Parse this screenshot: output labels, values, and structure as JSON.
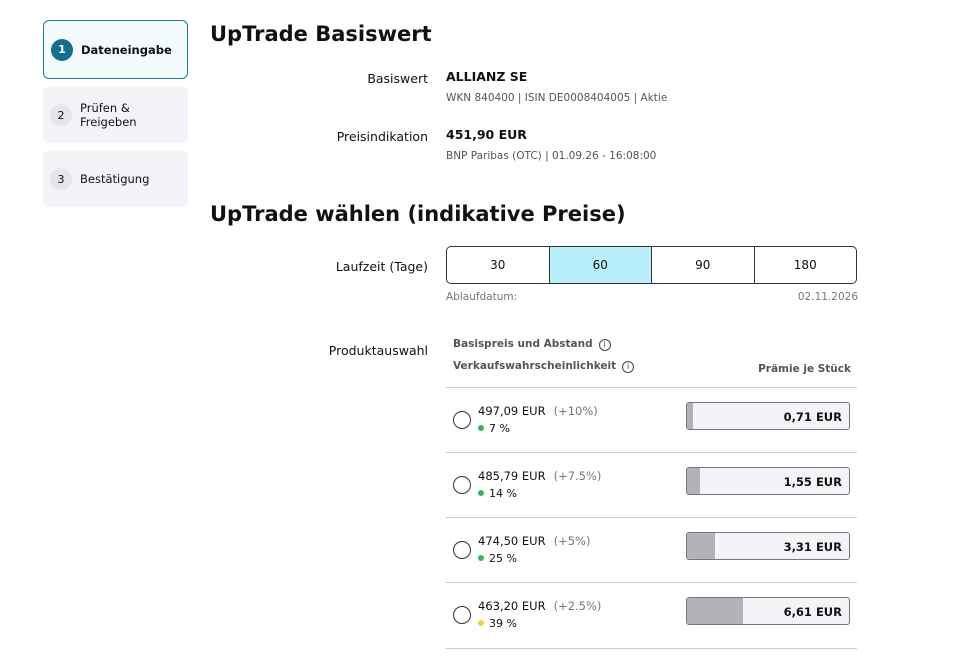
{
  "steps": [
    {
      "number": "1",
      "label": "Dateneingabe",
      "active": true
    },
    {
      "number": "2",
      "label": "Prüfen & Freigeben",
      "active": false
    },
    {
      "number": "3",
      "label": "Bestätigung",
      "active": false
    }
  ],
  "underlying_section": {
    "title": "UpTrade Basiswert",
    "underlying_label": "Basiswert",
    "underlying_name": "ALLIANZ SE",
    "underlying_details": "WKN 840400 | ISIN DE0008404005 | Aktie",
    "price_label": "Preisindikation",
    "price": "451,90 EUR",
    "price_source": "BNP Paribas (OTC) | 01.09.26 - 16:08:00"
  },
  "selection_section": {
    "title": "UpTrade wählen (indikative Preise)",
    "term_label": "Laufzeit (Tage)",
    "terms": [
      "30",
      "60",
      "90",
      "180"
    ],
    "selected_term": 1,
    "expiry_label": "Ablaufdatum:",
    "expiry_date": "02.11.2026",
    "product_label": "Produktauswahl",
    "column_strike": "Basispreis und Abstand",
    "column_probability": "Verkaufswahrscheinlichkeit",
    "column_premium": "Prämie je Stück",
    "premium_bar_max": 19,
    "products": [
      {
        "strike": "497,09 EUR",
        "distance": "(+10%)",
        "probability": "7 %",
        "probability_color": "#3cb35a",
        "premium": 0.71,
        "premium_label": "0,71 EUR"
      },
      {
        "strike": "485,79 EUR",
        "distance": "(+7.5%)",
        "probability": "14 %",
        "probability_color": "#3cb35a",
        "premium": 1.55,
        "premium_label": "1,55 EUR"
      },
      {
        "strike": "474,50 EUR",
        "distance": "(+5%)",
        "probability": "25 %",
        "probability_color": "#3cb35a",
        "premium": 3.31,
        "premium_label": "3,31 EUR"
      },
      {
        "strike": "463,20 EUR",
        "distance": "(+2.5%)",
        "probability": "39 %",
        "probability_color": "#f2d13c",
        "premium": 6.61,
        "premium_label": "6,61 EUR"
      }
    ]
  }
}
